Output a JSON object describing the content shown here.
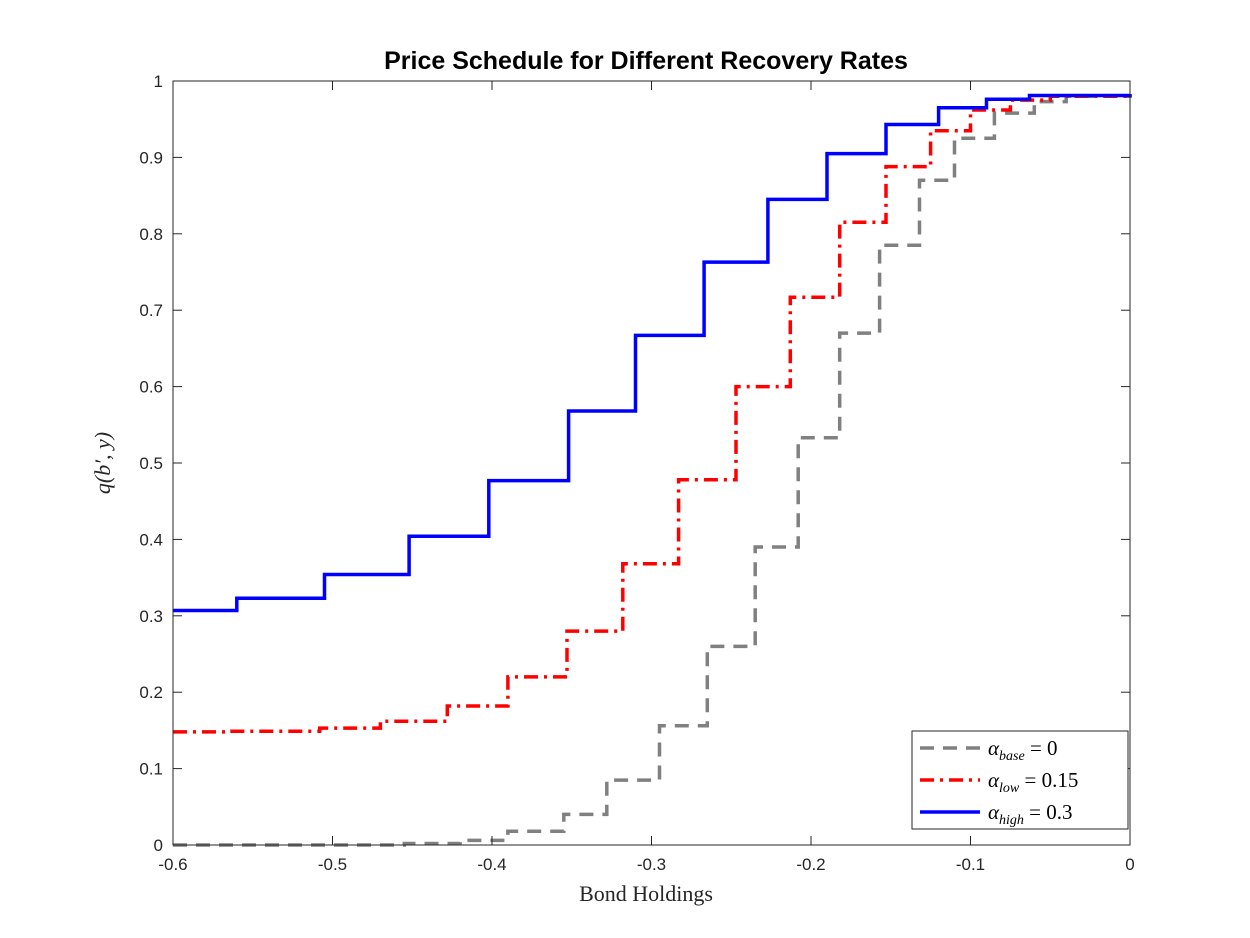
{
  "chart_data": {
    "type": "line",
    "title": "Price Schedule for Different Recovery Rates",
    "xlabel": "Bond Holdings",
    "ylabel_main": "q(b′, y)",
    "xlim": [
      -0.6,
      0
    ],
    "ylim": [
      0,
      1
    ],
    "xticks": [
      -0.6,
      -0.5,
      -0.4,
      -0.3,
      -0.2,
      -0.1,
      0
    ],
    "xtick_labels": [
      "-0.6",
      "-0.5",
      "-0.4",
      "-0.3",
      "-0.2",
      "-0.1",
      "0"
    ],
    "yticks": [
      0,
      0.1,
      0.2,
      0.3,
      0.4,
      0.5,
      0.6,
      0.7,
      0.8,
      0.9,
      1
    ],
    "ytick_labels": [
      "0",
      "0.1",
      "0.2",
      "0.3",
      "0.4",
      "0.5",
      "0.6",
      "0.7",
      "0.8",
      "0.9",
      "1"
    ],
    "grid": false,
    "legend_position": "bottom-right",
    "series": [
      {
        "name_sym": "α",
        "name_sub": "base",
        "name_val": "= 0",
        "color": "#808080",
        "dash": "dashed",
        "steps": [
          [
            -0.6,
            0.0
          ],
          [
            -0.455,
            0.002
          ],
          [
            -0.42,
            0.006
          ],
          [
            -0.39,
            0.018
          ],
          [
            -0.355,
            0.04
          ],
          [
            -0.328,
            0.085
          ],
          [
            -0.295,
            0.156
          ],
          [
            -0.265,
            0.26
          ],
          [
            -0.235,
            0.39
          ],
          [
            -0.208,
            0.533
          ],
          [
            -0.182,
            0.67
          ],
          [
            -0.157,
            0.785
          ],
          [
            -0.132,
            0.87
          ],
          [
            -0.11,
            0.925
          ],
          [
            -0.085,
            0.958
          ],
          [
            -0.06,
            0.973
          ],
          [
            -0.04,
            0.98
          ],
          [
            0,
            0.982
          ]
        ]
      },
      {
        "name_sym": "α",
        "name_sub": "low",
        "name_val": "= 0.15",
        "color": "#ff0000",
        "dash": "dashdot",
        "steps": [
          [
            -0.6,
            0.148
          ],
          [
            -0.565,
            0.149
          ],
          [
            -0.508,
            0.153
          ],
          [
            -0.47,
            0.162
          ],
          [
            -0.428,
            0.182
          ],
          [
            -0.39,
            0.22
          ],
          [
            -0.353,
            0.28
          ],
          [
            -0.318,
            0.368
          ],
          [
            -0.283,
            0.478
          ],
          [
            -0.247,
            0.6
          ],
          [
            -0.213,
            0.717
          ],
          [
            -0.182,
            0.815
          ],
          [
            -0.153,
            0.888
          ],
          [
            -0.125,
            0.935
          ],
          [
            -0.1,
            0.962
          ],
          [
            -0.075,
            0.975
          ],
          [
            -0.05,
            0.98
          ],
          [
            0,
            0.982
          ]
        ]
      },
      {
        "name_sym": "α",
        "name_sub": "high",
        "name_val": "= 0.3",
        "color": "#0000ff",
        "dash": "solid",
        "steps": [
          [
            -0.6,
            0.307
          ],
          [
            -0.56,
            0.323
          ],
          [
            -0.505,
            0.354
          ],
          [
            -0.452,
            0.404
          ],
          [
            -0.402,
            0.477
          ],
          [
            -0.352,
            0.568
          ],
          [
            -0.31,
            0.667
          ],
          [
            -0.267,
            0.763
          ],
          [
            -0.227,
            0.845
          ],
          [
            -0.19,
            0.905
          ],
          [
            -0.153,
            0.943
          ],
          [
            -0.12,
            0.965
          ],
          [
            -0.09,
            0.976
          ],
          [
            -0.063,
            0.981
          ],
          [
            0,
            0.983
          ]
        ]
      }
    ]
  }
}
